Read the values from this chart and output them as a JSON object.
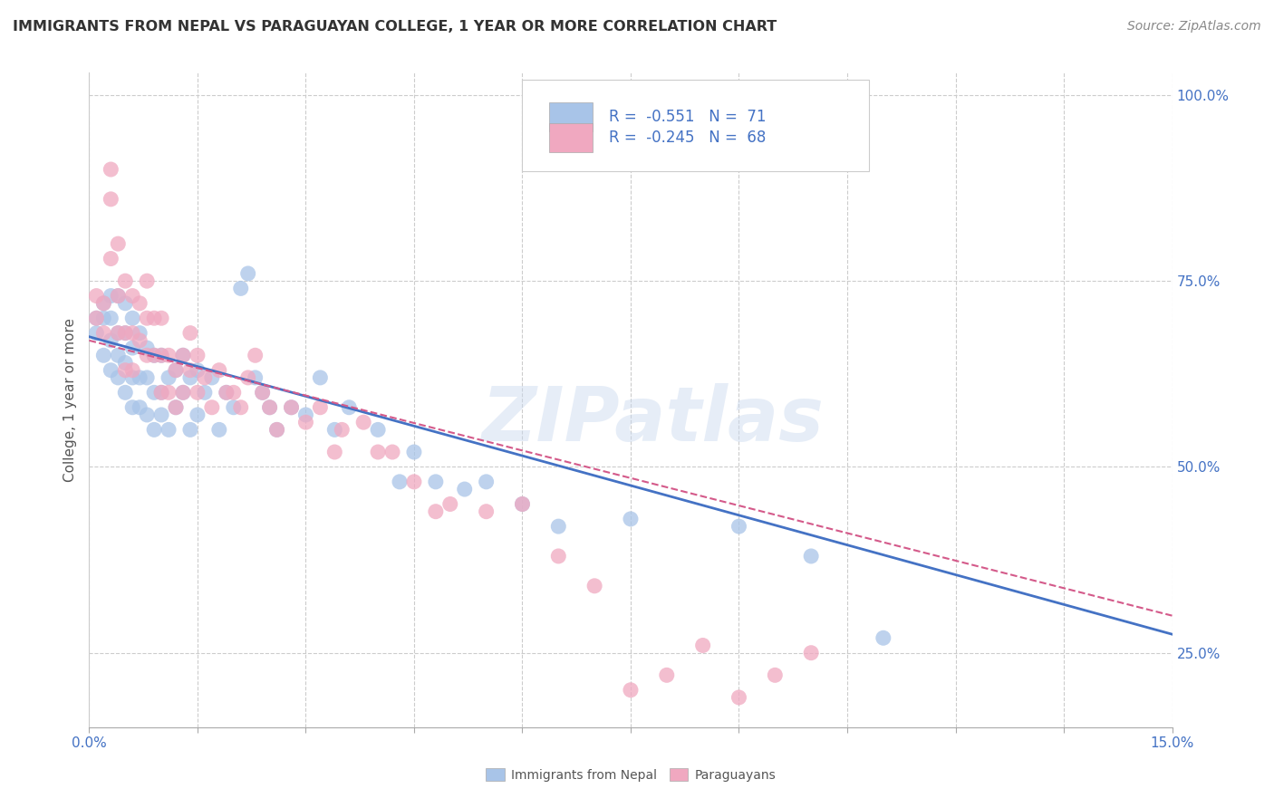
{
  "title": "IMMIGRANTS FROM NEPAL VS PARAGUAYAN COLLEGE, 1 YEAR OR MORE CORRELATION CHART",
  "source": "Source: ZipAtlas.com",
  "ylabel_label": "College, 1 year or more",
  "x_min": 0.0,
  "x_max": 0.15,
  "y_min": 0.15,
  "y_max": 1.03,
  "x_ticks": [
    0.0,
    0.015,
    0.03,
    0.045,
    0.06,
    0.075,
    0.09,
    0.105,
    0.12,
    0.135,
    0.15
  ],
  "y_ticks": [
    0.25,
    0.5,
    0.75,
    1.0
  ],
  "y_tick_labels": [
    "25.0%",
    "50.0%",
    "75.0%",
    "100.0%"
  ],
  "legend_R_nepal": "-0.551",
  "legend_N_nepal": "71",
  "legend_R_paraguay": "-0.245",
  "legend_N_paraguay": "68",
  "color_nepal": "#a8c4e8",
  "color_paraguay": "#f0a8c0",
  "color_nepal_line": "#4472c4",
  "color_paraguay_line": "#d45a8a",
  "watermark": "ZIPatlas",
  "nepal_x": [
    0.001,
    0.001,
    0.002,
    0.002,
    0.002,
    0.003,
    0.003,
    0.003,
    0.003,
    0.004,
    0.004,
    0.004,
    0.004,
    0.005,
    0.005,
    0.005,
    0.005,
    0.006,
    0.006,
    0.006,
    0.006,
    0.007,
    0.007,
    0.007,
    0.008,
    0.008,
    0.008,
    0.009,
    0.009,
    0.009,
    0.01,
    0.01,
    0.01,
    0.011,
    0.011,
    0.012,
    0.012,
    0.013,
    0.013,
    0.014,
    0.014,
    0.015,
    0.015,
    0.016,
    0.017,
    0.018,
    0.019,
    0.02,
    0.021,
    0.022,
    0.023,
    0.024,
    0.025,
    0.026,
    0.028,
    0.03,
    0.032,
    0.034,
    0.036,
    0.04,
    0.043,
    0.045,
    0.048,
    0.052,
    0.055,
    0.06,
    0.065,
    0.075,
    0.09,
    0.1,
    0.11
  ],
  "nepal_y": [
    0.68,
    0.7,
    0.65,
    0.7,
    0.72,
    0.63,
    0.67,
    0.7,
    0.73,
    0.62,
    0.65,
    0.68,
    0.73,
    0.6,
    0.64,
    0.68,
    0.72,
    0.58,
    0.62,
    0.66,
    0.7,
    0.58,
    0.62,
    0.68,
    0.57,
    0.62,
    0.66,
    0.55,
    0.6,
    0.65,
    0.57,
    0.6,
    0.65,
    0.55,
    0.62,
    0.58,
    0.63,
    0.6,
    0.65,
    0.55,
    0.62,
    0.57,
    0.63,
    0.6,
    0.62,
    0.55,
    0.6,
    0.58,
    0.74,
    0.76,
    0.62,
    0.6,
    0.58,
    0.55,
    0.58,
    0.57,
    0.62,
    0.55,
    0.58,
    0.55,
    0.48,
    0.52,
    0.48,
    0.47,
    0.48,
    0.45,
    0.42,
    0.43,
    0.42,
    0.38,
    0.27
  ],
  "paraguay_x": [
    0.001,
    0.001,
    0.002,
    0.002,
    0.003,
    0.003,
    0.003,
    0.004,
    0.004,
    0.004,
    0.005,
    0.005,
    0.005,
    0.006,
    0.006,
    0.006,
    0.007,
    0.007,
    0.008,
    0.008,
    0.008,
    0.009,
    0.009,
    0.01,
    0.01,
    0.01,
    0.011,
    0.011,
    0.012,
    0.012,
    0.013,
    0.013,
    0.014,
    0.014,
    0.015,
    0.015,
    0.016,
    0.017,
    0.018,
    0.019,
    0.02,
    0.021,
    0.022,
    0.023,
    0.024,
    0.025,
    0.026,
    0.028,
    0.03,
    0.032,
    0.034,
    0.035,
    0.038,
    0.04,
    0.042,
    0.045,
    0.048,
    0.05,
    0.055,
    0.06,
    0.065,
    0.07,
    0.075,
    0.08,
    0.085,
    0.09,
    0.095,
    0.1
  ],
  "paraguay_y": [
    0.7,
    0.73,
    0.68,
    0.72,
    0.86,
    0.9,
    0.78,
    0.68,
    0.73,
    0.8,
    0.63,
    0.68,
    0.75,
    0.63,
    0.68,
    0.73,
    0.67,
    0.72,
    0.65,
    0.7,
    0.75,
    0.65,
    0.7,
    0.6,
    0.65,
    0.7,
    0.6,
    0.65,
    0.58,
    0.63,
    0.6,
    0.65,
    0.63,
    0.68,
    0.6,
    0.65,
    0.62,
    0.58,
    0.63,
    0.6,
    0.6,
    0.58,
    0.62,
    0.65,
    0.6,
    0.58,
    0.55,
    0.58,
    0.56,
    0.58,
    0.52,
    0.55,
    0.56,
    0.52,
    0.52,
    0.48,
    0.44,
    0.45,
    0.44,
    0.45,
    0.38,
    0.34,
    0.2,
    0.22,
    0.26,
    0.19,
    0.22,
    0.25
  ]
}
